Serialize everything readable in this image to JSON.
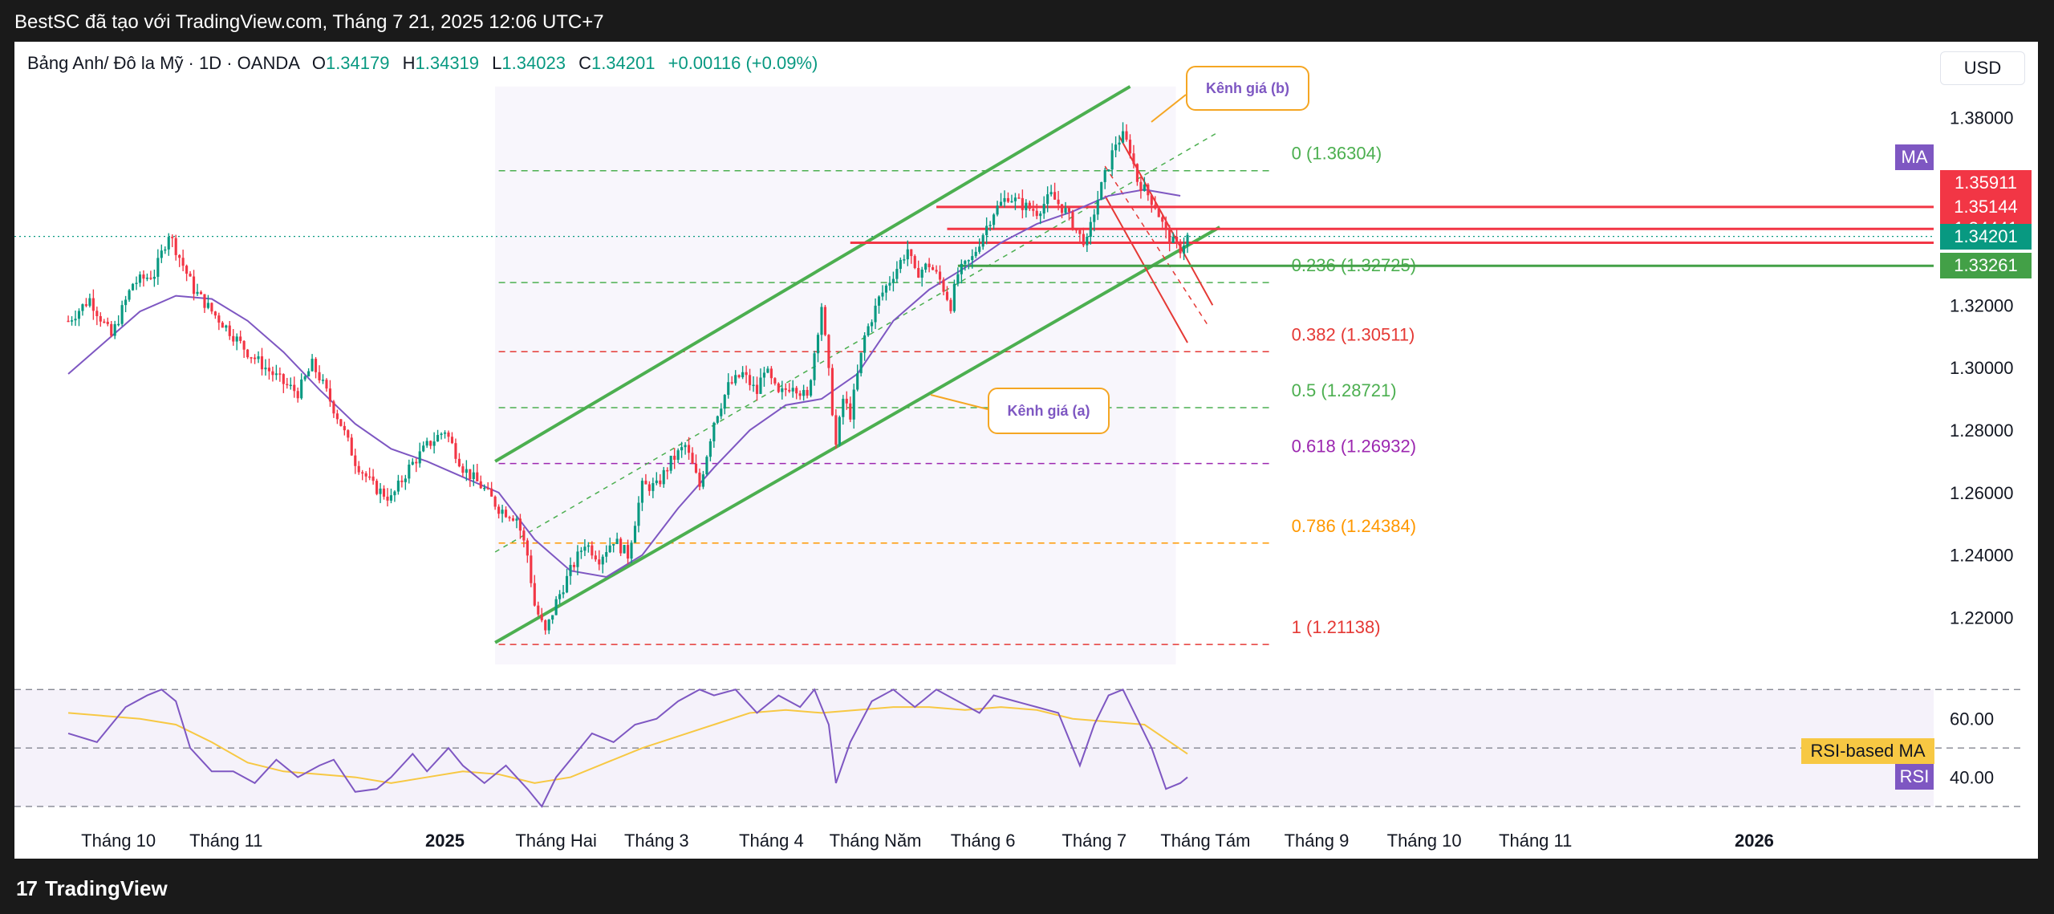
{
  "header": {
    "title": "BestSC đã tạo với TradingView.com, Tháng 7 21, 2025 12:06 UTC+7"
  },
  "footer": {
    "brand": "TradingView"
  },
  "legend": {
    "symbol": "Bảng Anh/ Đô la Mỹ · 1D · OANDA",
    "open_key": "O",
    "open": "1.34179",
    "high_key": "H",
    "high": "1.34319",
    "low_key": "L",
    "low": "1.34023",
    "close_key": "C",
    "close": "1.34201",
    "change": "+0.00116 (+0.09%)"
  },
  "currency": "USD",
  "chart_data": {
    "type": "candlestick",
    "ylim": [
      1.205,
      1.392
    ],
    "y_ticks": [
      "1.38000",
      "1.36000",
      "1.34000",
      "1.32000",
      "1.30000",
      "1.28000",
      "1.26000",
      "1.24000",
      "1.22000"
    ],
    "y_tick_values": [
      1.38,
      1.36,
      1.34,
      1.32,
      1.3,
      1.28,
      1.26,
      1.24,
      1.22
    ],
    "x_ticks": [
      "Tháng 10",
      "Tháng 11",
      "2025",
      "Tháng Hai",
      "Tháng 3",
      "Tháng 4",
      "Tháng Năm",
      "Tháng 6",
      "Tháng 7",
      "Tháng Tám",
      "Tháng 9",
      "Tháng 10",
      "Tháng 11",
      "2026"
    ],
    "x_tick_days": [
      14,
      44,
      105,
      136,
      164,
      196,
      225,
      255,
      286,
      317,
      348,
      378,
      409,
      470
    ],
    "x_days_range": [
      -15,
      520
    ],
    "price_path": [
      [
        0,
        1.315
      ],
      [
        6,
        1.322
      ],
      [
        12,
        1.31
      ],
      [
        18,
        1.327
      ],
      [
        24,
        1.33
      ],
      [
        28,
        1.343
      ],
      [
        30,
        1.338
      ],
      [
        35,
        1.325
      ],
      [
        40,
        1.318
      ],
      [
        44,
        1.313
      ],
      [
        50,
        1.305
      ],
      [
        55,
        1.3
      ],
      [
        60,
        1.295
      ],
      [
        64,
        1.292
      ],
      [
        68,
        1.301
      ],
      [
        70,
        1.297
      ],
      [
        76,
        1.282
      ],
      [
        80,
        1.27
      ],
      [
        85,
        1.262
      ],
      [
        90,
        1.258
      ],
      [
        95,
        1.268
      ],
      [
        100,
        1.275
      ],
      [
        105,
        1.28
      ],
      [
        110,
        1.268
      ],
      [
        116,
        1.261
      ],
      [
        120,
        1.255
      ],
      [
        125,
        1.252
      ],
      [
        128,
        1.24
      ],
      [
        130,
        1.224
      ],
      [
        133,
        1.215
      ],
      [
        136,
        1.225
      ],
      [
        140,
        1.235
      ],
      [
        144,
        1.244
      ],
      [
        148,
        1.239
      ],
      [
        152,
        1.245
      ],
      [
        156,
        1.24
      ],
      [
        160,
        1.262
      ],
      [
        164,
        1.262
      ],
      [
        168,
        1.27
      ],
      [
        172,
        1.275
      ],
      [
        176,
        1.262
      ],
      [
        180,
        1.283
      ],
      [
        184,
        1.294
      ],
      [
        188,
        1.298
      ],
      [
        192,
        1.292
      ],
      [
        194,
        1.3
      ],
      [
        198,
        1.291
      ],
      [
        202,
        1.295
      ],
      [
        206,
        1.29
      ],
      [
        208,
        1.305
      ],
      [
        210,
        1.32
      ],
      [
        212,
        1.298
      ],
      [
        214,
        1.275
      ],
      [
        216,
        1.29
      ],
      [
        218,
        1.285
      ],
      [
        222,
        1.31
      ],
      [
        226,
        1.322
      ],
      [
        230,
        1.33
      ],
      [
        234,
        1.338
      ],
      [
        236,
        1.33
      ],
      [
        240,
        1.333
      ],
      [
        243,
        1.328
      ],
      [
        246,
        1.32
      ],
      [
        248,
        1.33
      ],
      [
        252,
        1.335
      ],
      [
        255,
        1.343
      ],
      [
        258,
        1.35
      ],
      [
        262,
        1.355
      ],
      [
        266,
        1.352
      ],
      [
        270,
        1.35
      ],
      [
        274,
        1.355
      ],
      [
        278,
        1.35
      ],
      [
        282,
        1.342
      ],
      [
        284,
        1.34
      ],
      [
        286,
        1.35
      ],
      [
        288,
        1.358
      ],
      [
        290,
        1.365
      ],
      [
        292,
        1.372
      ],
      [
        294,
        1.374
      ],
      [
        296,
        1.37
      ],
      [
        298,
        1.36
      ],
      [
        300,
        1.357
      ],
      [
        303,
        1.352
      ],
      [
        306,
        1.343
      ],
      [
        308,
        1.34
      ],
      [
        310,
        1.338
      ],
      [
        312,
        1.342
      ]
    ],
    "ma_path": [
      [
        0,
        1.298
      ],
      [
        10,
        1.308
      ],
      [
        20,
        1.318
      ],
      [
        30,
        1.323
      ],
      [
        40,
        1.322
      ],
      [
        50,
        1.315
      ],
      [
        60,
        1.305
      ],
      [
        70,
        1.293
      ],
      [
        80,
        1.282
      ],
      [
        90,
        1.274
      ],
      [
        100,
        1.27
      ],
      [
        110,
        1.265
      ],
      [
        120,
        1.26
      ],
      [
        130,
        1.245
      ],
      [
        140,
        1.235
      ],
      [
        150,
        1.233
      ],
      [
        160,
        1.24
      ],
      [
        170,
        1.255
      ],
      [
        180,
        1.268
      ],
      [
        190,
        1.28
      ],
      [
        200,
        1.288
      ],
      [
        210,
        1.29
      ],
      [
        220,
        1.298
      ],
      [
        230,
        1.315
      ],
      [
        240,
        1.325
      ],
      [
        250,
        1.332
      ],
      [
        260,
        1.34
      ],
      [
        270,
        1.346
      ],
      [
        280,
        1.35
      ],
      [
        290,
        1.355
      ],
      [
        300,
        1.357
      ],
      [
        310,
        1.355
      ]
    ],
    "series": [
      {
        "name": "MA",
        "color": "#7e57c2"
      },
      {
        "name": "RSI",
        "color": "#7e57c2"
      },
      {
        "name": "RSI-based MA",
        "color": "#f7c843"
      }
    ],
    "price_badges": [
      {
        "value": "1.35911",
        "color": "#f23645"
      },
      {
        "value": "1.35144",
        "color": "#f23645"
      },
      {
        "value": "1.34441",
        "color": "#f23645"
      },
      {
        "value": "1.34201",
        "color": "#089981"
      },
      {
        "value": "1.33261",
        "color": "#43a047"
      }
    ],
    "horizontal_lines": [
      {
        "price": 1.35144,
        "color": "#f23645",
        "from_day": 242
      },
      {
        "price": 1.34441,
        "color": "#f23645",
        "from_day": 245
      },
      {
        "price": 1.34,
        "color": "#f23645",
        "from_day": 218
      },
      {
        "price": 1.33261,
        "color": "#43a047",
        "from_day": 248
      }
    ],
    "fibonacci": [
      {
        "label": "0 (1.36304)",
        "price": 1.36304,
        "color": "#4caf50"
      },
      {
        "label": "0.236 (1.32725)",
        "price": 1.32725,
        "color": "#4caf50"
      },
      {
        "label": "0.382 (1.30511)",
        "price": 1.30511,
        "color": "#e53935"
      },
      {
        "label": "0.5 (1.28721)",
        "price": 1.28721,
        "color": "#4caf50"
      },
      {
        "label": "0.618 (1.26932)",
        "price": 1.26932,
        "color": "#9c27b0"
      },
      {
        "label": "0.786 (1.24384)",
        "price": 1.24384,
        "color": "#ff9800"
      },
      {
        "label": "1 (1.21138)",
        "price": 1.21138,
        "color": "#e53935"
      }
    ],
    "channel_a": {
      "label": "Kênh giá (a)",
      "lower": [
        [
          119,
          1.212
        ],
        [
          321,
          1.345
        ]
      ],
      "upper": [
        [
          119,
          1.27
        ],
        [
          296,
          1.39
        ]
      ]
    },
    "channel_b": {
      "label": "Kênh giá (b)",
      "upper": [
        [
          293,
          1.374
        ],
        [
          319,
          1.32
        ]
      ],
      "lower": [
        [
          289,
          1.355
        ],
        [
          312,
          1.308
        ]
      ]
    },
    "rsi": {
      "ticks": [
        "60.00",
        "40.00"
      ],
      "tick_values": [
        60,
        40
      ],
      "ylim": [
        30,
        72
      ],
      "levels": [
        70,
        50,
        30
      ],
      "rsi_path": [
        [
          0,
          55
        ],
        [
          8,
          52
        ],
        [
          16,
          64
        ],
        [
          22,
          68
        ],
        [
          26,
          70
        ],
        [
          30,
          66
        ],
        [
          34,
          50
        ],
        [
          40,
          42
        ],
        [
          46,
          42
        ],
        [
          52,
          38
        ],
        [
          58,
          46
        ],
        [
          64,
          40
        ],
        [
          70,
          44
        ],
        [
          74,
          46
        ],
        [
          80,
          35
        ],
        [
          86,
          36
        ],
        [
          90,
          40
        ],
        [
          96,
          48
        ],
        [
          100,
          42
        ],
        [
          106,
          50
        ],
        [
          110,
          44
        ],
        [
          116,
          38
        ],
        [
          122,
          44
        ],
        [
          128,
          36
        ],
        [
          132,
          30
        ],
        [
          136,
          40
        ],
        [
          140,
          46
        ],
        [
          146,
          55
        ],
        [
          152,
          52
        ],
        [
          158,
          58
        ],
        [
          164,
          60
        ],
        [
          170,
          66
        ],
        [
          176,
          70
        ],
        [
          180,
          68
        ],
        [
          186,
          70
        ],
        [
          192,
          62
        ],
        [
          198,
          68
        ],
        [
          204,
          64
        ],
        [
          208,
          70
        ],
        [
          212,
          58
        ],
        [
          214,
          38
        ],
        [
          218,
          52
        ],
        [
          224,
          66
        ],
        [
          230,
          70
        ],
        [
          236,
          64
        ],
        [
          242,
          70
        ],
        [
          248,
          66
        ],
        [
          254,
          62
        ],
        [
          258,
          68
        ],
        [
          264,
          66
        ],
        [
          270,
          64
        ],
        [
          276,
          62
        ],
        [
          282,
          44
        ],
        [
          286,
          58
        ],
        [
          290,
          68
        ],
        [
          294,
          70
        ],
        [
          298,
          60
        ],
        [
          302,
          50
        ],
        [
          306,
          36
        ],
        [
          310,
          38
        ],
        [
          312,
          40
        ]
      ],
      "ma_path": [
        [
          0,
          62
        ],
        [
          10,
          61
        ],
        [
          20,
          60
        ],
        [
          30,
          58
        ],
        [
          40,
          52
        ],
        [
          50,
          45
        ],
        [
          60,
          42
        ],
        [
          70,
          41
        ],
        [
          80,
          40
        ],
        [
          90,
          38
        ],
        [
          100,
          40
        ],
        [
          110,
          42
        ],
        [
          120,
          41
        ],
        [
          130,
          38
        ],
        [
          140,
          40
        ],
        [
          150,
          45
        ],
        [
          160,
          50
        ],
        [
          170,
          54
        ],
        [
          180,
          58
        ],
        [
          190,
          62
        ],
        [
          200,
          63
        ],
        [
          210,
          62
        ],
        [
          220,
          63
        ],
        [
          230,
          64
        ],
        [
          240,
          64
        ],
        [
          250,
          63
        ],
        [
          260,
          64
        ],
        [
          270,
          63
        ],
        [
          280,
          60
        ],
        [
          290,
          59
        ],
        [
          300,
          58
        ],
        [
          306,
          53
        ],
        [
          312,
          48
        ]
      ]
    }
  }
}
